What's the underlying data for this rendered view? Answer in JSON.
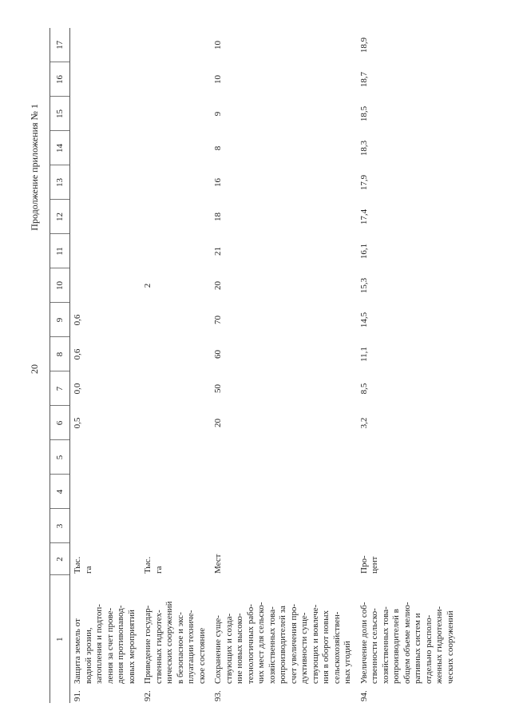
{
  "header": {
    "title": "Продолжение приложения № 1",
    "page": "20"
  },
  "table": {
    "columns": [
      "1",
      "2",
      "3",
      "4",
      "5",
      "6",
      "7",
      "8",
      "9",
      "10",
      "11",
      "12",
      "13",
      "14",
      "15",
      "16",
      "17"
    ],
    "rows": [
      {
        "number": "91.",
        "name": [
          "Защита земель от",
          "водной эрозии,",
          "затопления и подтоп-",
          "ления за счет прове-",
          "дения противопавод-",
          "ковых мероприятий"
        ],
        "unit": [
          "Тыс.",
          "га"
        ],
        "values": [
          null,
          null,
          null,
          "0,5",
          "0,0",
          "0,6",
          "0,6",
          null,
          null,
          null,
          null,
          null,
          null,
          null,
          null
        ]
      },
      {
        "number": "92.",
        "name": [
          "Приведение государ-",
          "ственных гидротех-",
          "нических сооружений",
          "в безопасное и экс-",
          "плуатации техниче-",
          "ское состояние"
        ],
        "unit": [
          "Тыс.",
          "га"
        ],
        "values": [
          null,
          null,
          null,
          null,
          null,
          null,
          null,
          "2",
          null,
          null,
          null,
          null,
          null,
          null,
          null
        ]
      },
      {
        "number": "93.",
        "name": [
          "Сохранение суще-",
          "ствующих и созда-",
          "ние новых высоко-",
          "технологичных рабо-",
          "чих мест для сельско-",
          "хозяйственных това-",
          "ропроизводителей за",
          "счет увеличения про-",
          "дуктивности суще-",
          "ствующих и вовлече-",
          "ния в оборот новых",
          "сельскохозяйствен-",
          "ных угодий"
        ],
        "unit": [
          "Мест"
        ],
        "values": [
          null,
          null,
          null,
          "20",
          "50",
          "60",
          "70",
          "20",
          "21",
          "18",
          "16",
          "8",
          "9",
          "10",
          "10"
        ]
      },
      {
        "number": "94.",
        "name": [
          "Увеличение доли соб-",
          "ственности сельско-",
          "хозяйственных това-",
          "ропроизводителей в",
          "общем объеме мелио-",
          "ративных систем и",
          "отдельно располо-",
          "женных гидротехни-",
          "ческих сооружений"
        ],
        "unit": [
          "Про-",
          "цент"
        ],
        "values": [
          null,
          null,
          null,
          "3,2",
          "8,5",
          "11,1",
          "14,5",
          "15,3",
          "16,1",
          "17,4",
          "17,9",
          "18,3",
          "18,5",
          "18,7",
          "18,9"
        ]
      }
    ]
  }
}
